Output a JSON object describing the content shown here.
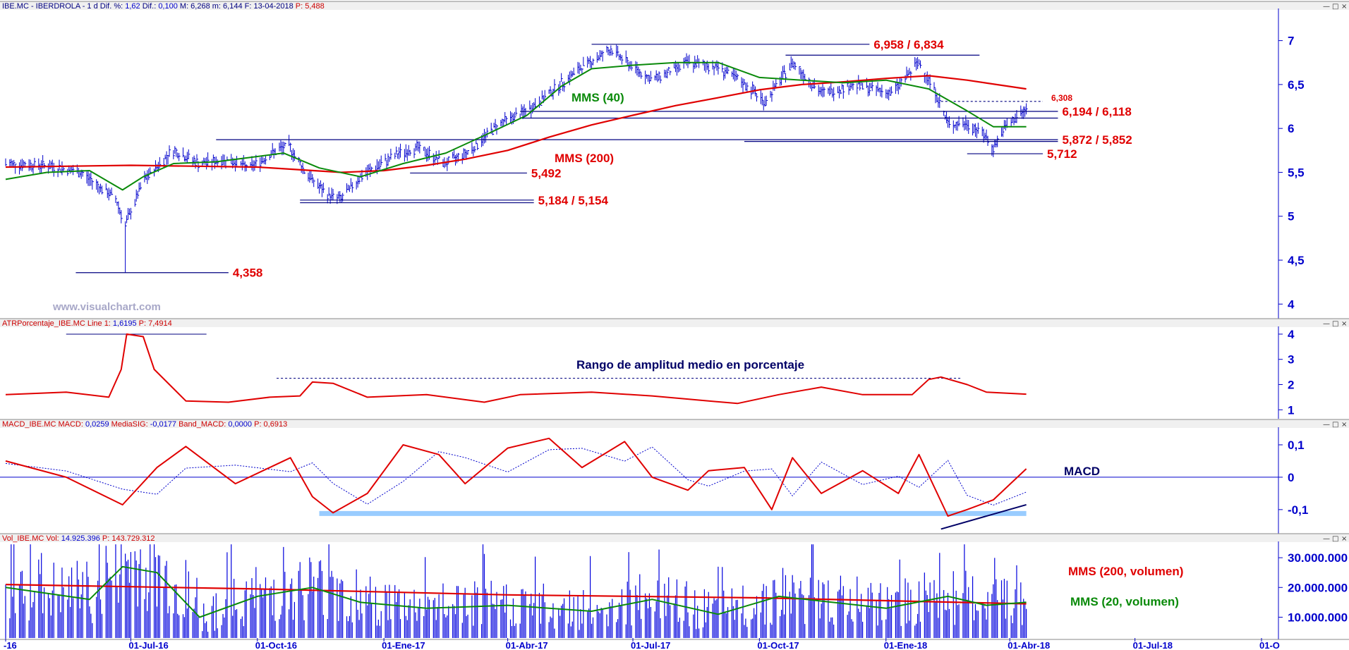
{
  "colors": {
    "price": "#0000cc",
    "mms40": "#0a8a0a",
    "mms200": "#e00000",
    "atr": "#e00000",
    "macd": "#e00000",
    "signal": "#0000cc",
    "band": "#99ccff",
    "volume": "#0000dd",
    "axis": "#0000cc",
    "level_line": "#000080"
  },
  "window_buttons": [
    "—",
    "□",
    "×"
  ],
  "x_axis": {
    "start": "2016-04-01",
    "end": "2018-10-01",
    "ticks": [
      {
        "date": "2016-04-01",
        "label": "-16"
      },
      {
        "date": "2016-07-01",
        "label": "01-Jul-16"
      },
      {
        "date": "2016-10-01",
        "label": "01-Oct-16"
      },
      {
        "date": "2017-01-01",
        "label": "01-Ene-17"
      },
      {
        "date": "2017-04-01",
        "label": "01-Abr-17"
      },
      {
        "date": "2017-07-01",
        "label": "01-Jul-17"
      },
      {
        "date": "2017-10-01",
        "label": "01-Oct-17"
      },
      {
        "date": "2018-01-01",
        "label": "01-Ene-18"
      },
      {
        "date": "2018-04-01",
        "label": "01-Abr-18"
      },
      {
        "date": "2018-07-01",
        "label": "01-Jul-18"
      },
      {
        "date": "2018-10-01",
        "label": "01-O"
      }
    ]
  },
  "watermark": "www.visualchart.com",
  "panels": {
    "price": {
      "header": [
        {
          "t": "IBE.MC - IBERDROLA -  1 d  Dif. %: ",
          "c": "hdr"
        },
        {
          "t": "1,62",
          "c": "hdrv"
        },
        {
          "t": "  Dif.: ",
          "c": "hdr"
        },
        {
          "t": "0,100",
          "c": "hdrv"
        },
        {
          "t": "  M: 6,268  m: 6,144  F: 13-04-2018  ",
          "c": "hdr"
        },
        {
          "t": "P: 5,488",
          "c": "hdrr"
        }
      ],
      "ylim": [
        3.85,
        7.35
      ],
      "yticks": [
        {
          "v": 4,
          "label": "4"
        },
        {
          "v": 4.5,
          "label": "4,5"
        },
        {
          "v": 5,
          "label": "5"
        },
        {
          "v": 5.5,
          "label": "5,5"
        },
        {
          "v": 6,
          "label": "6"
        },
        {
          "v": 6.5,
          "label": "6,5"
        },
        {
          "v": 7,
          "label": "7"
        }
      ]
    },
    "atr": {
      "header": [
        {
          "t": "ATRPorcentaje_IBE.MC  Line 1: ",
          "c": "hdrr"
        },
        {
          "t": "1,6195",
          "c": "hdrv"
        },
        {
          "t": "  P: 7,4914",
          "c": "hdrr"
        }
      ],
      "ylim": [
        0.7,
        4.25
      ],
      "yticks": [
        {
          "v": 1,
          "label": "1"
        },
        {
          "v": 2,
          "label": "2"
        },
        {
          "v": 3,
          "label": "3"
        },
        {
          "v": 4,
          "label": "4"
        }
      ],
      "annotation": "Rango de amplitud medio en porcentaje"
    },
    "macd": {
      "header": [
        {
          "t": "MACD_IBE.MC  MACD: ",
          "c": "hdrr"
        },
        {
          "t": "0,0259",
          "c": "hdrv"
        },
        {
          "t": "  MediaSIG: ",
          "c": "hdrr"
        },
        {
          "t": "-0,0177",
          "c": "hdrv"
        },
        {
          "t": "  Band_MACD: ",
          "c": "hdrr"
        },
        {
          "t": "0,0000",
          "c": "hdrv"
        },
        {
          "t": "  P: 0,6913",
          "c": "hdrr"
        }
      ],
      "ylim": [
        -0.17,
        0.15
      ],
      "yticks": [
        {
          "v": -0.1,
          "label": "-0,1"
        },
        {
          "v": 0,
          "label": "0"
        },
        {
          "v": 0.1,
          "label": "0,1"
        }
      ],
      "annotation": "MACD"
    },
    "volume": {
      "header": [
        {
          "t": "Vol_IBE.MC  Vol: ",
          "c": "hdrr"
        },
        {
          "t": "14.925.396",
          "c": "hdrv"
        },
        {
          "t": "  P: 143.729.312",
          "c": "hdrr"
        }
      ],
      "ylim": [
        3000000,
        35000000
      ],
      "yticks": [
        {
          "v": 10000000,
          "label": "10.000.000"
        },
        {
          "v": 20000000,
          "label": "20.000.000"
        },
        {
          "v": 30000000,
          "label": "30.000.000"
        }
      ],
      "labels": [
        "MMS (200, volumen)",
        "MMS (20, volumen)"
      ]
    }
  },
  "chart_data": {
    "type": "line",
    "series": [
      {
        "name": "MMS (40)",
        "panel": "price",
        "points": [
          [
            "2016-04-01",
            5.42
          ],
          [
            "2016-05-01",
            5.5
          ],
          [
            "2016-06-01",
            5.52
          ],
          [
            "2016-06-25",
            5.3
          ],
          [
            "2016-07-10",
            5.45
          ],
          [
            "2016-08-01",
            5.6
          ],
          [
            "2016-09-01",
            5.62
          ],
          [
            "2016-10-01",
            5.68
          ],
          [
            "2016-10-20",
            5.72
          ],
          [
            "2016-11-15",
            5.55
          ],
          [
            "2016-12-15",
            5.45
          ],
          [
            "2017-01-15",
            5.6
          ],
          [
            "2017-02-15",
            5.72
          ],
          [
            "2017-03-15",
            5.92
          ],
          [
            "2017-04-15",
            6.15
          ],
          [
            "2017-05-10",
            6.48
          ],
          [
            "2017-06-01",
            6.68
          ],
          [
            "2017-07-01",
            6.72
          ],
          [
            "2017-08-01",
            6.75
          ],
          [
            "2017-09-01",
            6.75
          ],
          [
            "2017-10-01",
            6.58
          ],
          [
            "2017-11-01",
            6.55
          ],
          [
            "2017-12-01",
            6.52
          ],
          [
            "2018-01-01",
            6.55
          ],
          [
            "2018-02-01",
            6.45
          ],
          [
            "2018-03-01",
            6.2
          ],
          [
            "2018-03-20",
            6.02
          ],
          [
            "2018-04-13",
            6.02
          ]
        ]
      },
      {
        "name": "MMS (200)",
        "panel": "price",
        "points": [
          [
            "2016-04-01",
            5.56
          ],
          [
            "2016-07-01",
            5.58
          ],
          [
            "2016-10-01",
            5.56
          ],
          [
            "2016-12-01",
            5.5
          ],
          [
            "2017-01-01",
            5.52
          ],
          [
            "2017-02-01",
            5.58
          ],
          [
            "2017-03-01",
            5.65
          ],
          [
            "2017-04-01",
            5.75
          ],
          [
            "2017-05-01",
            5.9
          ],
          [
            "2017-06-01",
            6.04
          ],
          [
            "2017-07-01",
            6.15
          ],
          [
            "2017-08-01",
            6.26
          ],
          [
            "2017-09-01",
            6.35
          ],
          [
            "2017-10-01",
            6.44
          ],
          [
            "2017-11-01",
            6.5
          ],
          [
            "2017-12-01",
            6.53
          ],
          [
            "2018-01-01",
            6.57
          ],
          [
            "2018-02-01",
            6.6
          ],
          [
            "2018-03-01",
            6.55
          ],
          [
            "2018-04-13",
            6.45
          ]
        ]
      },
      {
        "name": "ATR %",
        "panel": "atr",
        "points": [
          [
            "2016-04-01",
            1.6
          ],
          [
            "2016-05-15",
            1.7
          ],
          [
            "2016-06-15",
            1.5
          ],
          [
            "2016-06-24",
            2.6
          ],
          [
            "2016-06-28",
            4.0
          ],
          [
            "2016-07-10",
            3.9
          ],
          [
            "2016-07-18",
            2.6
          ],
          [
            "2016-08-10",
            1.35
          ],
          [
            "2016-09-10",
            1.3
          ],
          [
            "2016-10-10",
            1.5
          ],
          [
            "2016-11-01",
            1.55
          ],
          [
            "2016-11-10",
            2.1
          ],
          [
            "2016-11-25",
            2.05
          ],
          [
            "2016-12-20",
            1.5
          ],
          [
            "2017-02-01",
            1.6
          ],
          [
            "2017-03-15",
            1.3
          ],
          [
            "2017-04-10",
            1.6
          ],
          [
            "2017-06-01",
            1.7
          ],
          [
            "2017-07-15",
            1.55
          ],
          [
            "2017-08-15",
            1.4
          ],
          [
            "2017-09-15",
            1.25
          ],
          [
            "2017-10-15",
            1.6
          ],
          [
            "2017-11-15",
            1.9
          ],
          [
            "2017-12-15",
            1.6
          ],
          [
            "2018-01-20",
            1.6
          ],
          [
            "2018-02-01",
            2.2
          ],
          [
            "2018-02-10",
            2.3
          ],
          [
            "2018-03-01",
            2.0
          ],
          [
            "2018-03-15",
            1.7
          ],
          [
            "2018-04-13",
            1.62
          ]
        ]
      },
      {
        "name": "MACD",
        "panel": "macd",
        "points": [
          [
            "2016-04-01",
            0.05
          ],
          [
            "2016-05-15",
            0.0
          ],
          [
            "2016-06-25",
            -0.085
          ],
          [
            "2016-07-20",
            0.03
          ],
          [
            "2016-08-10",
            0.095
          ],
          [
            "2016-09-15",
            -0.02
          ],
          [
            "2016-10-25",
            0.06
          ],
          [
            "2016-11-10",
            -0.06
          ],
          [
            "2016-11-25",
            -0.11
          ],
          [
            "2016-12-20",
            -0.05
          ],
          [
            "2017-01-15",
            0.1
          ],
          [
            "2017-02-10",
            0.07
          ],
          [
            "2017-03-01",
            -0.02
          ],
          [
            "2017-04-01",
            0.09
          ],
          [
            "2017-05-01",
            0.12
          ],
          [
            "2017-05-25",
            0.03
          ],
          [
            "2017-06-25",
            0.11
          ],
          [
            "2017-07-15",
            0.0
          ],
          [
            "2017-08-10",
            -0.04
          ],
          [
            "2017-08-25",
            0.02
          ],
          [
            "2017-09-20",
            0.03
          ],
          [
            "2017-10-10",
            -0.1
          ],
          [
            "2017-10-25",
            0.06
          ],
          [
            "2017-11-15",
            -0.05
          ],
          [
            "2017-12-15",
            0.02
          ],
          [
            "2018-01-10",
            -0.05
          ],
          [
            "2018-01-25",
            0.07
          ],
          [
            "2018-02-15",
            -0.12
          ],
          [
            "2018-03-01",
            -0.1
          ],
          [
            "2018-03-20",
            -0.07
          ],
          [
            "2018-04-13",
            0.026
          ]
        ]
      },
      {
        "name": "MMS (200, volumen)",
        "panel": "volume",
        "points": [
          [
            "2016-04-01",
            21000000
          ],
          [
            "2016-10-01",
            19500000
          ],
          [
            "2017-04-01",
            17500000
          ],
          [
            "2017-10-01",
            16500000
          ],
          [
            "2018-04-13",
            14500000
          ]
        ]
      },
      {
        "name": "MMS (20, volumen)",
        "panel": "volume",
        "points": [
          [
            "2016-04-01",
            20000000
          ],
          [
            "2016-06-01",
            16000000
          ],
          [
            "2016-06-25",
            27000000
          ],
          [
            "2016-07-20",
            25000000
          ],
          [
            "2016-08-20",
            10000000
          ],
          [
            "2016-10-01",
            17000000
          ],
          [
            "2016-11-10",
            20000000
          ],
          [
            "2016-12-15",
            15000000
          ],
          [
            "2017-02-01",
            13000000
          ],
          [
            "2017-04-01",
            14000000
          ],
          [
            "2017-06-01",
            12000000
          ],
          [
            "2017-07-15",
            16000000
          ],
          [
            "2017-09-01",
            11000000
          ],
          [
            "2017-10-15",
            17000000
          ],
          [
            "2018-01-01",
            13000000
          ],
          [
            "2018-02-15",
            17000000
          ],
          [
            "2018-03-15",
            14000000
          ],
          [
            "2018-04-13",
            15000000
          ]
        ]
      }
    ],
    "price_series": {
      "name": "IBE.MC",
      "panel": "price",
      "points": [
        [
          "2016-04-01",
          5.6
        ],
        [
          "2016-05-01",
          5.58
        ],
        [
          "2016-05-25",
          5.5
        ],
        [
          "2016-06-20",
          5.2
        ],
        [
          "2016-06-27",
          4.9
        ],
        [
          "2016-07-10",
          5.4
        ],
        [
          "2016-07-25",
          5.65
        ],
        [
          "2016-08-01",
          5.75
        ],
        [
          "2016-08-20",
          5.6
        ],
        [
          "2016-09-10",
          5.65
        ],
        [
          "2016-09-25",
          5.55
        ],
        [
          "2016-10-15",
          5.75
        ],
        [
          "2016-10-24",
          5.8
        ],
        [
          "2016-11-05",
          5.5
        ],
        [
          "2016-11-20",
          5.25
        ],
        [
          "2016-12-01",
          5.2
        ],
        [
          "2016-12-15",
          5.45
        ],
        [
          "2017-01-10",
          5.7
        ],
        [
          "2017-01-25",
          5.78
        ],
        [
          "2017-02-15",
          5.6
        ],
        [
          "2017-03-05",
          5.75
        ],
        [
          "2017-03-25",
          6.05
        ],
        [
          "2017-04-15",
          6.2
        ],
        [
          "2017-05-01",
          6.4
        ],
        [
          "2017-05-25",
          6.7
        ],
        [
          "2017-06-15",
          6.9
        ],
        [
          "2017-07-01",
          6.7
        ],
        [
          "2017-07-15",
          6.55
        ],
        [
          "2017-08-10",
          6.75
        ],
        [
          "2017-09-01",
          6.7
        ],
        [
          "2017-09-25",
          6.45
        ],
        [
          "2017-10-05",
          6.3
        ],
        [
          "2017-10-25",
          6.75
        ],
        [
          "2017-11-15",
          6.4
        ],
        [
          "2017-12-10",
          6.5
        ],
        [
          "2018-01-05",
          6.4
        ],
        [
          "2018-01-25",
          6.75
        ],
        [
          "2018-02-05",
          6.45
        ],
        [
          "2018-02-15",
          6.05
        ],
        [
          "2018-03-01",
          6.05
        ],
        [
          "2018-03-12",
          5.95
        ],
        [
          "2018-03-20",
          5.78
        ],
        [
          "2018-03-28",
          6.0
        ],
        [
          "2018-04-13",
          6.22
        ]
      ]
    },
    "levels": [
      {
        "label": "6,958 / 6,834",
        "value": 6.958,
        "from": "2017-06-01",
        "to": "2017-12-20"
      },
      {
        "label": "",
        "value": 6.834,
        "from": "2017-10-20",
        "to": "2018-03-10"
      },
      {
        "label": "6,308",
        "value": 6.308,
        "from": "2018-02-10",
        "to": "2018-04-25",
        "dashed": true
      },
      {
        "label": "6,194 / 6,118",
        "value": 6.194,
        "from": "2017-04-10",
        "to": "2018-05-06"
      },
      {
        "label": "",
        "value": 6.118,
        "from": "2017-04-10",
        "to": "2018-05-06"
      },
      {
        "label": "5,872 / 5,852",
        "value": 5.872,
        "from": "2016-09-01",
        "to": "2018-05-06"
      },
      {
        "label": "",
        "value": 5.852,
        "from": "2017-09-20",
        "to": "2018-05-06"
      },
      {
        "label": "5,712",
        "value": 5.712,
        "from": "2018-03-01",
        "to": "2018-04-25"
      },
      {
        "label": "5,492",
        "value": 5.492,
        "from": "2017-01-20",
        "to": "2017-04-15"
      },
      {
        "label": "5,184 / 5,154",
        "value": 5.184,
        "from": "2016-11-01",
        "to": "2017-04-20"
      },
      {
        "label": "",
        "value": 5.154,
        "from": "2016-11-01",
        "to": "2017-04-20"
      },
      {
        "label": "4,358",
        "value": 4.358,
        "from": "2016-05-22",
        "to": "2016-09-10"
      }
    ],
    "atr_high_line": {
      "value": 4.0,
      "from": "2016-05-15",
      "to": "2016-08-25"
    },
    "atr_dotted": {
      "value": 2.25,
      "from": "2016-10-15",
      "to": "2018-02-25"
    },
    "macd_band": {
      "value": -0.112,
      "from": "2016-11-15",
      "to": "2018-04-13"
    },
    "macd_trend": [
      [
        "2018-02-10",
        -0.16
      ],
      [
        "2018-04-13",
        -0.085
      ]
    ],
    "price_labels": [
      "MMS (40)",
      "MMS (200)"
    ]
  }
}
